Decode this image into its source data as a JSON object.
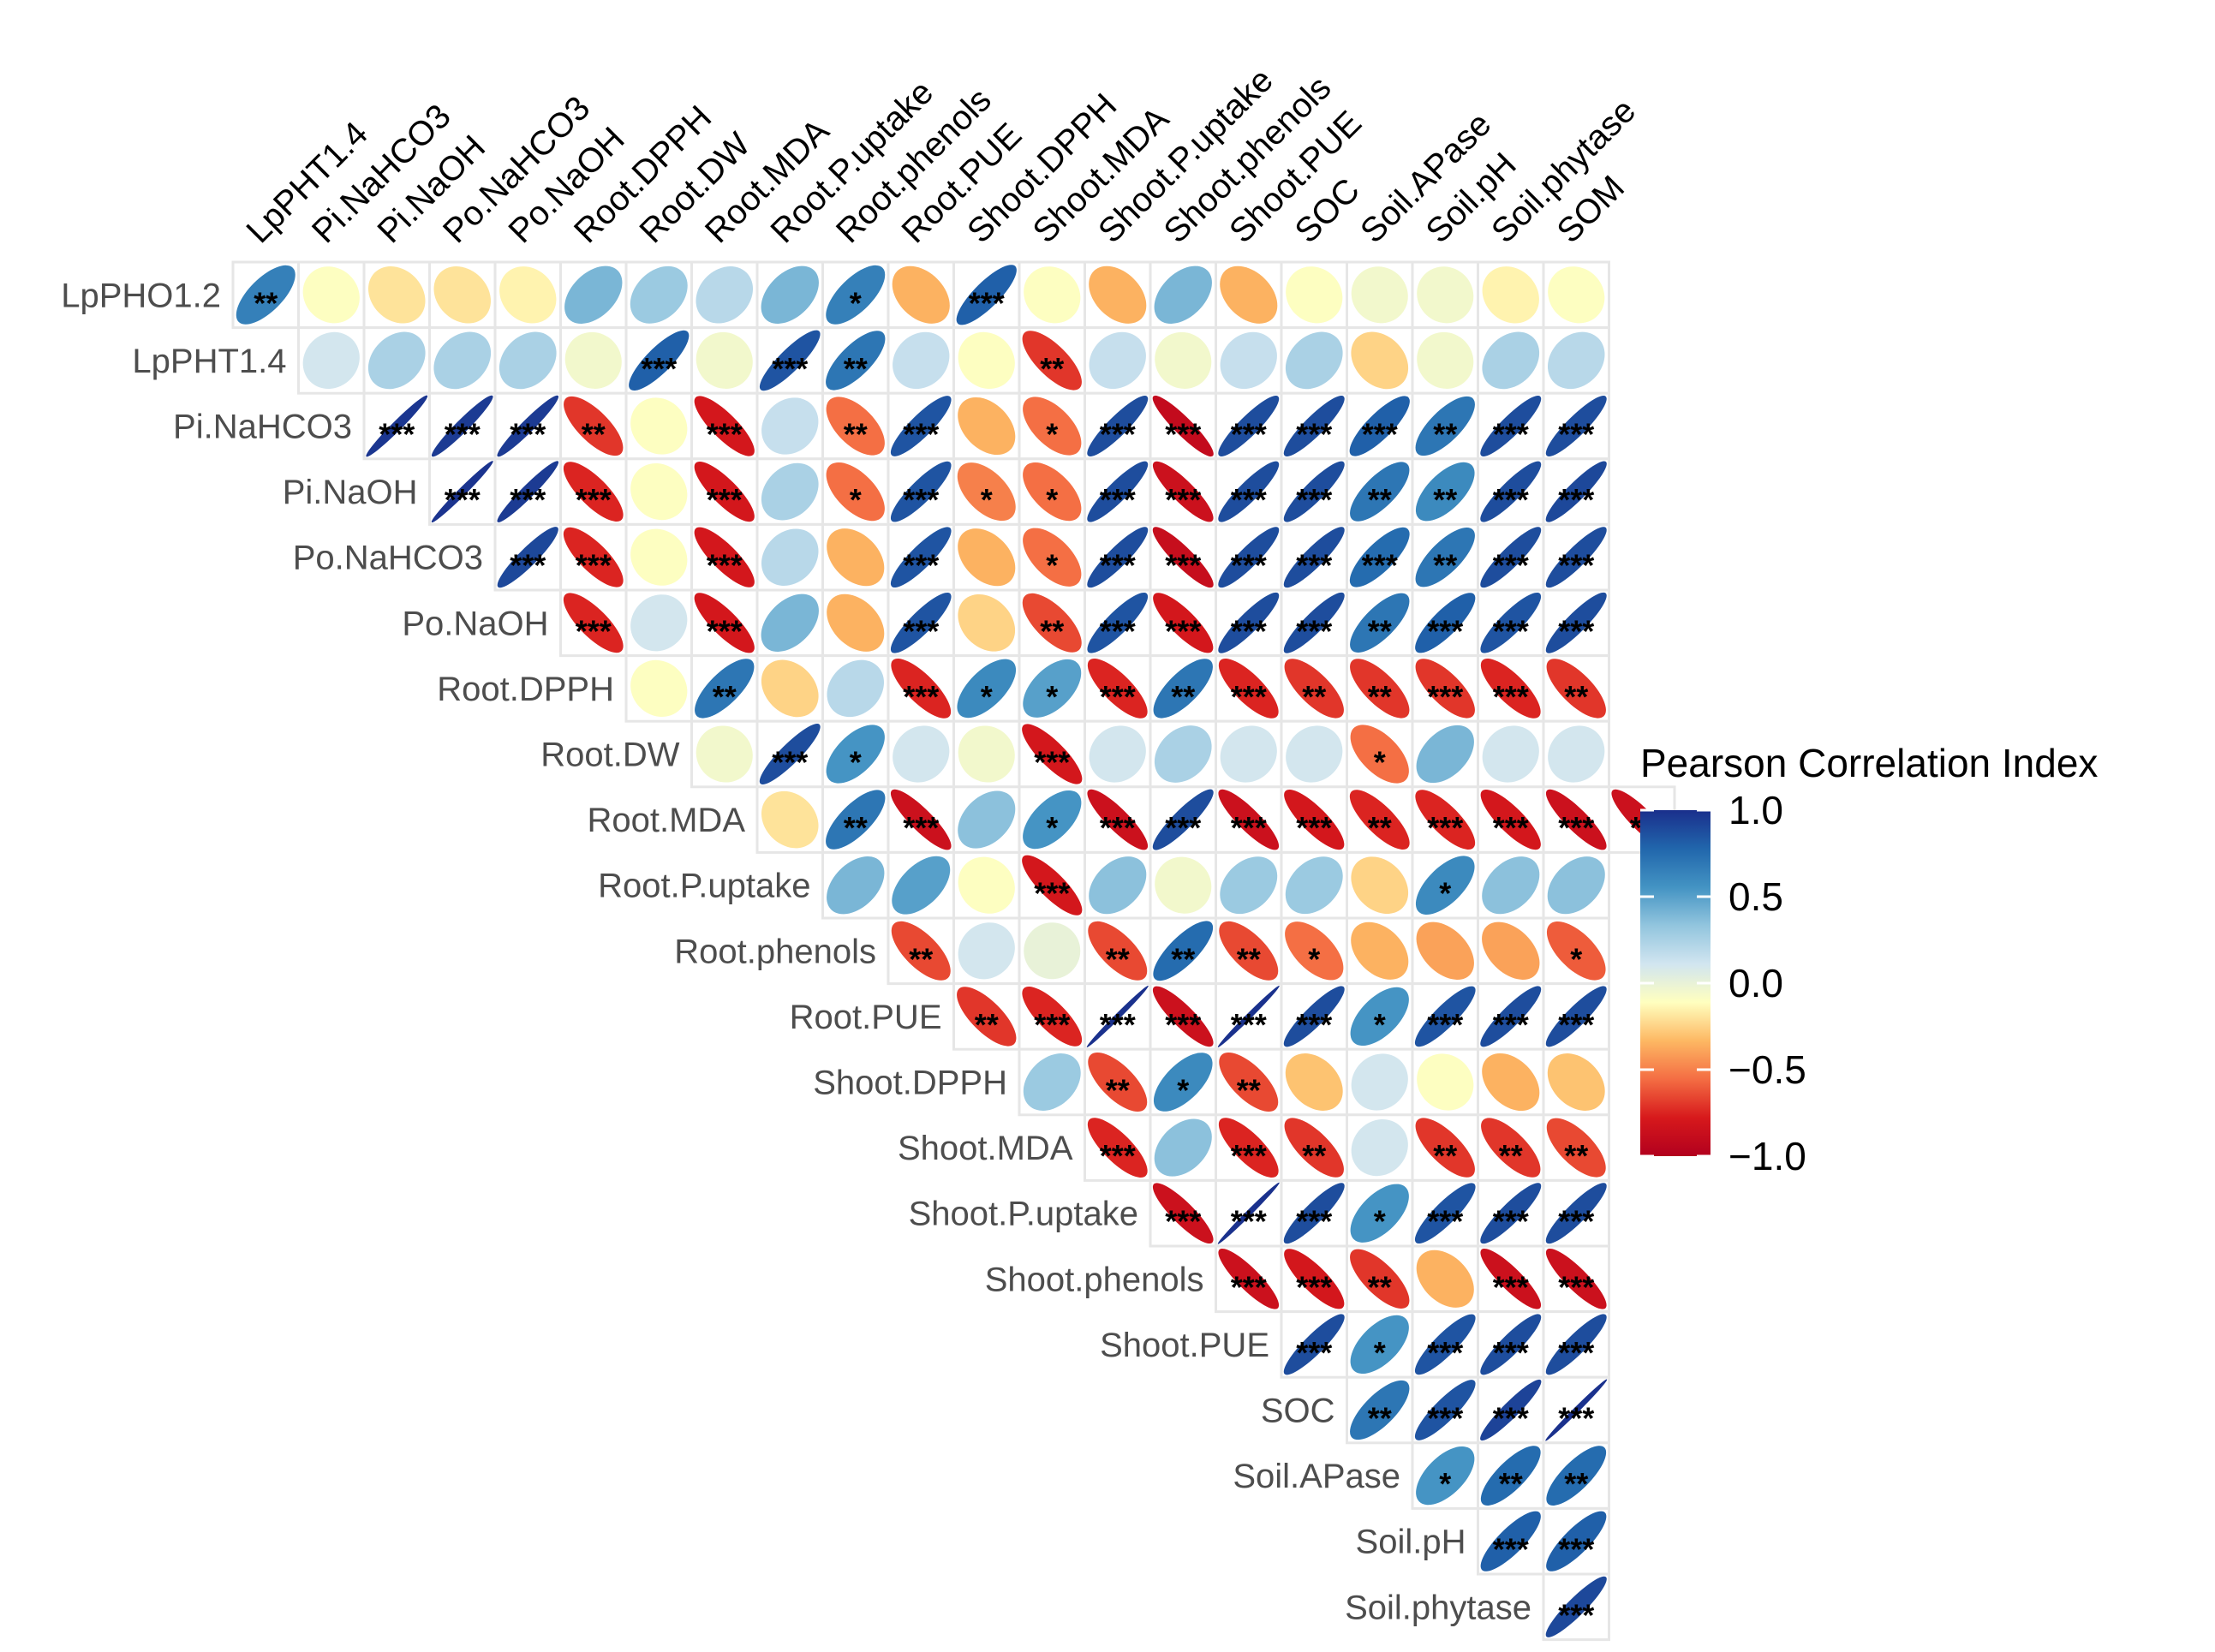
{
  "chart_data": {
    "type": "correlogram",
    "title": "",
    "legend_title": "Pearson Correlation Index",
    "legend_ticks": [
      "1.0",
      "0.5",
      "0.0",
      "−0.5",
      "−1.0"
    ],
    "legend_tick_values": [
      1.0,
      0.5,
      0.0,
      -0.5,
      -1.0
    ],
    "legend_position": "right",
    "value_range": [
      -1.0,
      1.0
    ],
    "color_stops": [
      "#1a2f8c",
      "#2166ac",
      "#4393c3",
      "#92c5de",
      "#d1e5f0",
      "#ffffbf",
      "#fdb863",
      "#f46d43",
      "#d7191c",
      "#b2001e"
    ],
    "columns": [
      "LpPHT1.4",
      "Pi.NaHCO3",
      "Pi.NaOH",
      "Po.NaHCO3",
      "Po.NaOH",
      "Root.DPPH",
      "Root.DW",
      "Root.MDA",
      "Root.P.uptake",
      "Root.phenols",
      "Root.PUE",
      "Shoot.DPPH",
      "Shoot.MDA",
      "Shoot.P.uptake",
      "Shoot.phenols",
      "Shoot.PUE",
      "SOC",
      "Soil.APase",
      "Soil.pH",
      "Soil.phytase",
      "SOM"
    ],
    "rows": [
      {
        "label": "LpPHO1.2",
        "values": [
          0.65,
          -0.1,
          -0.2,
          -0.2,
          -0.15,
          0.4,
          0.3,
          0.2,
          0.4,
          0.65,
          -0.35,
          0.8,
          -0.1,
          -0.35,
          0.4,
          -0.35,
          -0.1,
          -0.05,
          -0.05,
          -0.15,
          -0.1
        ],
        "sig": [
          "**",
          "",
          "",
          "",
          "",
          "",
          "",
          "",
          "",
          "*",
          "",
          "***",
          "",
          "",
          "",
          "",
          "",
          "",
          "",
          "",
          ""
        ]
      },
      {
        "label": "LpPHT1.4",
        "values": [
          0.1,
          0.25,
          0.25,
          0.25,
          -0.05,
          0.8,
          -0.05,
          0.85,
          0.7,
          0.15,
          -0.1,
          -0.7,
          0.15,
          -0.05,
          0.15,
          0.25,
          -0.25,
          -0.05,
          0.25,
          0.2
        ],
        "sig": [
          "",
          "",
          "",
          "",
          "",
          "***",
          "",
          "***",
          "**",
          "",
          "",
          "**",
          "",
          "",
          "",
          "",
          "",
          "",
          "",
          ""
        ]
      },
      {
        "label": "Pi.NaHCO3",
        "values": [
          0.97,
          0.95,
          0.95,
          -0.7,
          -0.1,
          -0.8,
          0.15,
          -0.55,
          0.85,
          -0.35,
          -0.55,
          0.88,
          -0.9,
          0.88,
          0.88,
          0.8,
          0.7,
          0.88,
          0.88
        ],
        "sig": [
          "***",
          "***",
          "***",
          "**",
          "",
          "***",
          "",
          "**",
          "***",
          "",
          "*",
          "***",
          "***",
          "***",
          "***",
          "***",
          "**",
          "***",
          "***"
        ]
      },
      {
        "label": "Pi.NaOH",
        "values": [
          0.98,
          0.95,
          -0.75,
          -0.1,
          -0.8,
          0.25,
          -0.55,
          0.85,
          -0.5,
          -0.55,
          0.88,
          -0.85,
          0.88,
          0.88,
          0.7,
          0.6,
          0.88,
          0.9
        ],
        "sig": [
          "***",
          "***",
          "***",
          "",
          "***",
          "",
          "*",
          "***",
          "*",
          "*",
          "***",
          "***",
          "***",
          "***",
          "**",
          "**",
          "***",
          "***"
        ]
      },
      {
        "label": "Po.NaHCO3",
        "values": [
          0.9,
          -0.75,
          -0.1,
          -0.8,
          0.2,
          -0.35,
          0.85,
          -0.35,
          -0.55,
          0.88,
          -0.88,
          0.88,
          0.88,
          0.75,
          0.7,
          0.88,
          0.88
        ],
        "sig": [
          "***",
          "***",
          "",
          "***",
          "",
          "",
          "***",
          "",
          "*",
          "***",
          "***",
          "***",
          "***",
          "***",
          "**",
          "***",
          "***"
        ]
      },
      {
        "label": "Po.NaOH",
        "values": [
          -0.75,
          0.1,
          -0.8,
          0.4,
          -0.35,
          0.85,
          -0.25,
          -0.65,
          0.85,
          -0.8,
          0.88,
          0.88,
          0.7,
          0.8,
          0.85,
          0.88
        ],
        "sig": [
          "***",
          "",
          "***",
          "",
          "",
          "***",
          "",
          "**",
          "***",
          "***",
          "***",
          "***",
          "**",
          "***",
          "***",
          "***"
        ]
      },
      {
        "label": "Root.DPPH",
        "values": [
          -0.1,
          0.7,
          -0.25,
          0.2,
          -0.75,
          0.6,
          0.5,
          -0.75,
          0.7,
          -0.75,
          -0.7,
          -0.7,
          -0.7,
          -0.75,
          -0.7
        ],
        "sig": [
          "",
          "**",
          "",
          "",
          "***",
          "*",
          "*",
          "***",
          "**",
          "***",
          "**",
          "**",
          "***",
          "***",
          "**"
        ]
      },
      {
        "label": "Root.DW",
        "values": [
          -0.05,
          0.88,
          0.55,
          0.1,
          -0.05,
          -0.8,
          0.1,
          0.25,
          0.1,
          0.1,
          -0.55,
          0.4,
          0.1,
          0.1
        ],
        "sig": [
          "",
          "***",
          "*",
          "",
          "",
          "***",
          "",
          "",
          "",
          "",
          "*",
          "",
          "",
          ""
        ]
      },
      {
        "label": "Root.MDA",
        "values": [
          -0.2,
          0.7,
          -0.85,
          0.35,
          0.55,
          -0.85,
          0.88,
          -0.85,
          -0.8,
          -0.75,
          -0.75,
          -0.8,
          -0.85,
          -0.85
        ],
        "sig": [
          "",
          "**",
          "***",
          "",
          "*",
          "***",
          "***",
          "***",
          "***",
          "**",
          "***",
          "***",
          "***",
          "**"
        ]
      },
      {
        "label": "Root.P.uptake",
        "values": [
          0.4,
          0.5,
          -0.1,
          -0.8,
          0.35,
          -0.05,
          0.3,
          0.3,
          -0.25,
          0.6,
          0.35,
          0.35
        ],
        "sig": [
          "",
          "",
          "",
          "***",
          "",
          "",
          "",
          "",
          "",
          "*",
          "",
          ""
        ]
      },
      {
        "label": "Root.phenols",
        "values": [
          -0.65,
          0.1,
          0.0,
          -0.65,
          0.75,
          -0.65,
          -0.55,
          -0.35,
          -0.4,
          -0.4,
          -0.6
        ],
        "sig": [
          "**",
          "",
          "",
          "**",
          "**",
          "**",
          "*",
          "",
          "",
          "",
          "*"
        ]
      },
      {
        "label": "Root.PUE",
        "values": [
          -0.7,
          -0.75,
          0.99,
          -0.85,
          0.99,
          0.88,
          0.55,
          0.85,
          0.88,
          0.88
        ],
        "sig": [
          "**",
          "***",
          "***",
          "***",
          "***",
          "***",
          "*",
          "***",
          "***",
          "***"
        ]
      },
      {
        "label": "Shoot.DPPH",
        "values": [
          0.3,
          -0.65,
          0.6,
          -0.65,
          -0.3,
          0.1,
          -0.1,
          -0.35,
          -0.3
        ],
        "sig": [
          "",
          "**",
          "*",
          "**",
          "",
          "",
          "",
          "",
          ""
        ]
      },
      {
        "label": "Shoot.MDA",
        "values": [
          -0.75,
          0.35,
          -0.75,
          -0.7,
          0.1,
          -0.7,
          -0.7,
          -0.65
        ],
        "sig": [
          "***",
          "",
          "***",
          "**",
          "",
          "**",
          "**",
          "**"
        ]
      },
      {
        "label": "Shoot.P.uptake",
        "values": [
          -0.85,
          0.99,
          0.88,
          0.55,
          0.85,
          0.88,
          0.88
        ],
        "sig": [
          "***",
          "***",
          "***",
          "*",
          "***",
          "***",
          "***"
        ]
      },
      {
        "label": "Shoot.phenols",
        "values": [
          -0.85,
          -0.8,
          -0.7,
          -0.35,
          -0.85,
          -0.85
        ],
        "sig": [
          "***",
          "***",
          "**",
          "",
          "***",
          "***"
        ]
      },
      {
        "label": "Shoot.PUE",
        "values": [
          0.88,
          0.55,
          0.85,
          0.88,
          0.88
        ],
        "sig": [
          "***",
          "*",
          "***",
          "***",
          "***"
        ]
      },
      {
        "label": "SOC",
        "values": [
          0.7,
          0.85,
          0.92,
          0.99
        ],
        "sig": [
          "**",
          "***",
          "***",
          "***"
        ]
      },
      {
        "label": "Soil.APase",
        "values": [
          0.55,
          0.75,
          0.75
        ],
        "sig": [
          "*",
          "**",
          "**"
        ]
      },
      {
        "label": "Soil.pH",
        "values": [
          0.8,
          0.8
        ],
        "sig": [
          "***",
          "***"
        ]
      },
      {
        "label": "Soil.phytase",
        "values": [
          0.9
        ],
        "sig": [
          "***"
        ]
      }
    ]
  }
}
